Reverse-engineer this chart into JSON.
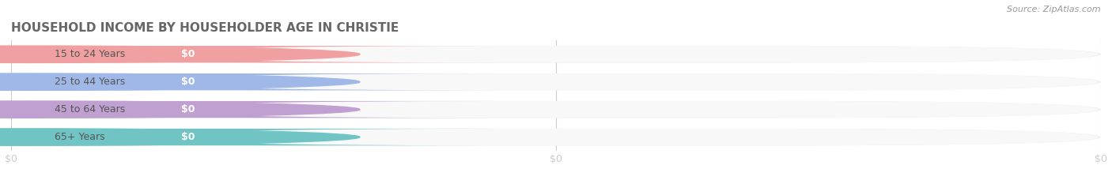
{
  "title": "HOUSEHOLD INCOME BY HOUSEHOLDER AGE IN CHRISTIE",
  "source": "Source: ZipAtlas.com",
  "categories": [
    "15 to 24 Years",
    "25 to 44 Years",
    "45 to 64 Years",
    "65+ Years"
  ],
  "values": [
    0,
    0,
    0,
    0
  ],
  "bar_colors": [
    "#f0a0a0",
    "#a0b8e8",
    "#c0a0d0",
    "#70c4c4"
  ],
  "background_color": "#ffffff",
  "bar_bg_color": "#efefef",
  "bar_inner_color": "#f8f8f8",
  "title_color": "#666666",
  "source_color": "#999999",
  "text_color": "#555555",
  "value_text_color": "#ffffff",
  "figsize": [
    14.06,
    2.33
  ],
  "dpi": 100,
  "xtick_labels": [
    "$0",
    "$0",
    "$0"
  ],
  "xtick_positions": [
    0.0,
    0.5,
    1.0
  ]
}
